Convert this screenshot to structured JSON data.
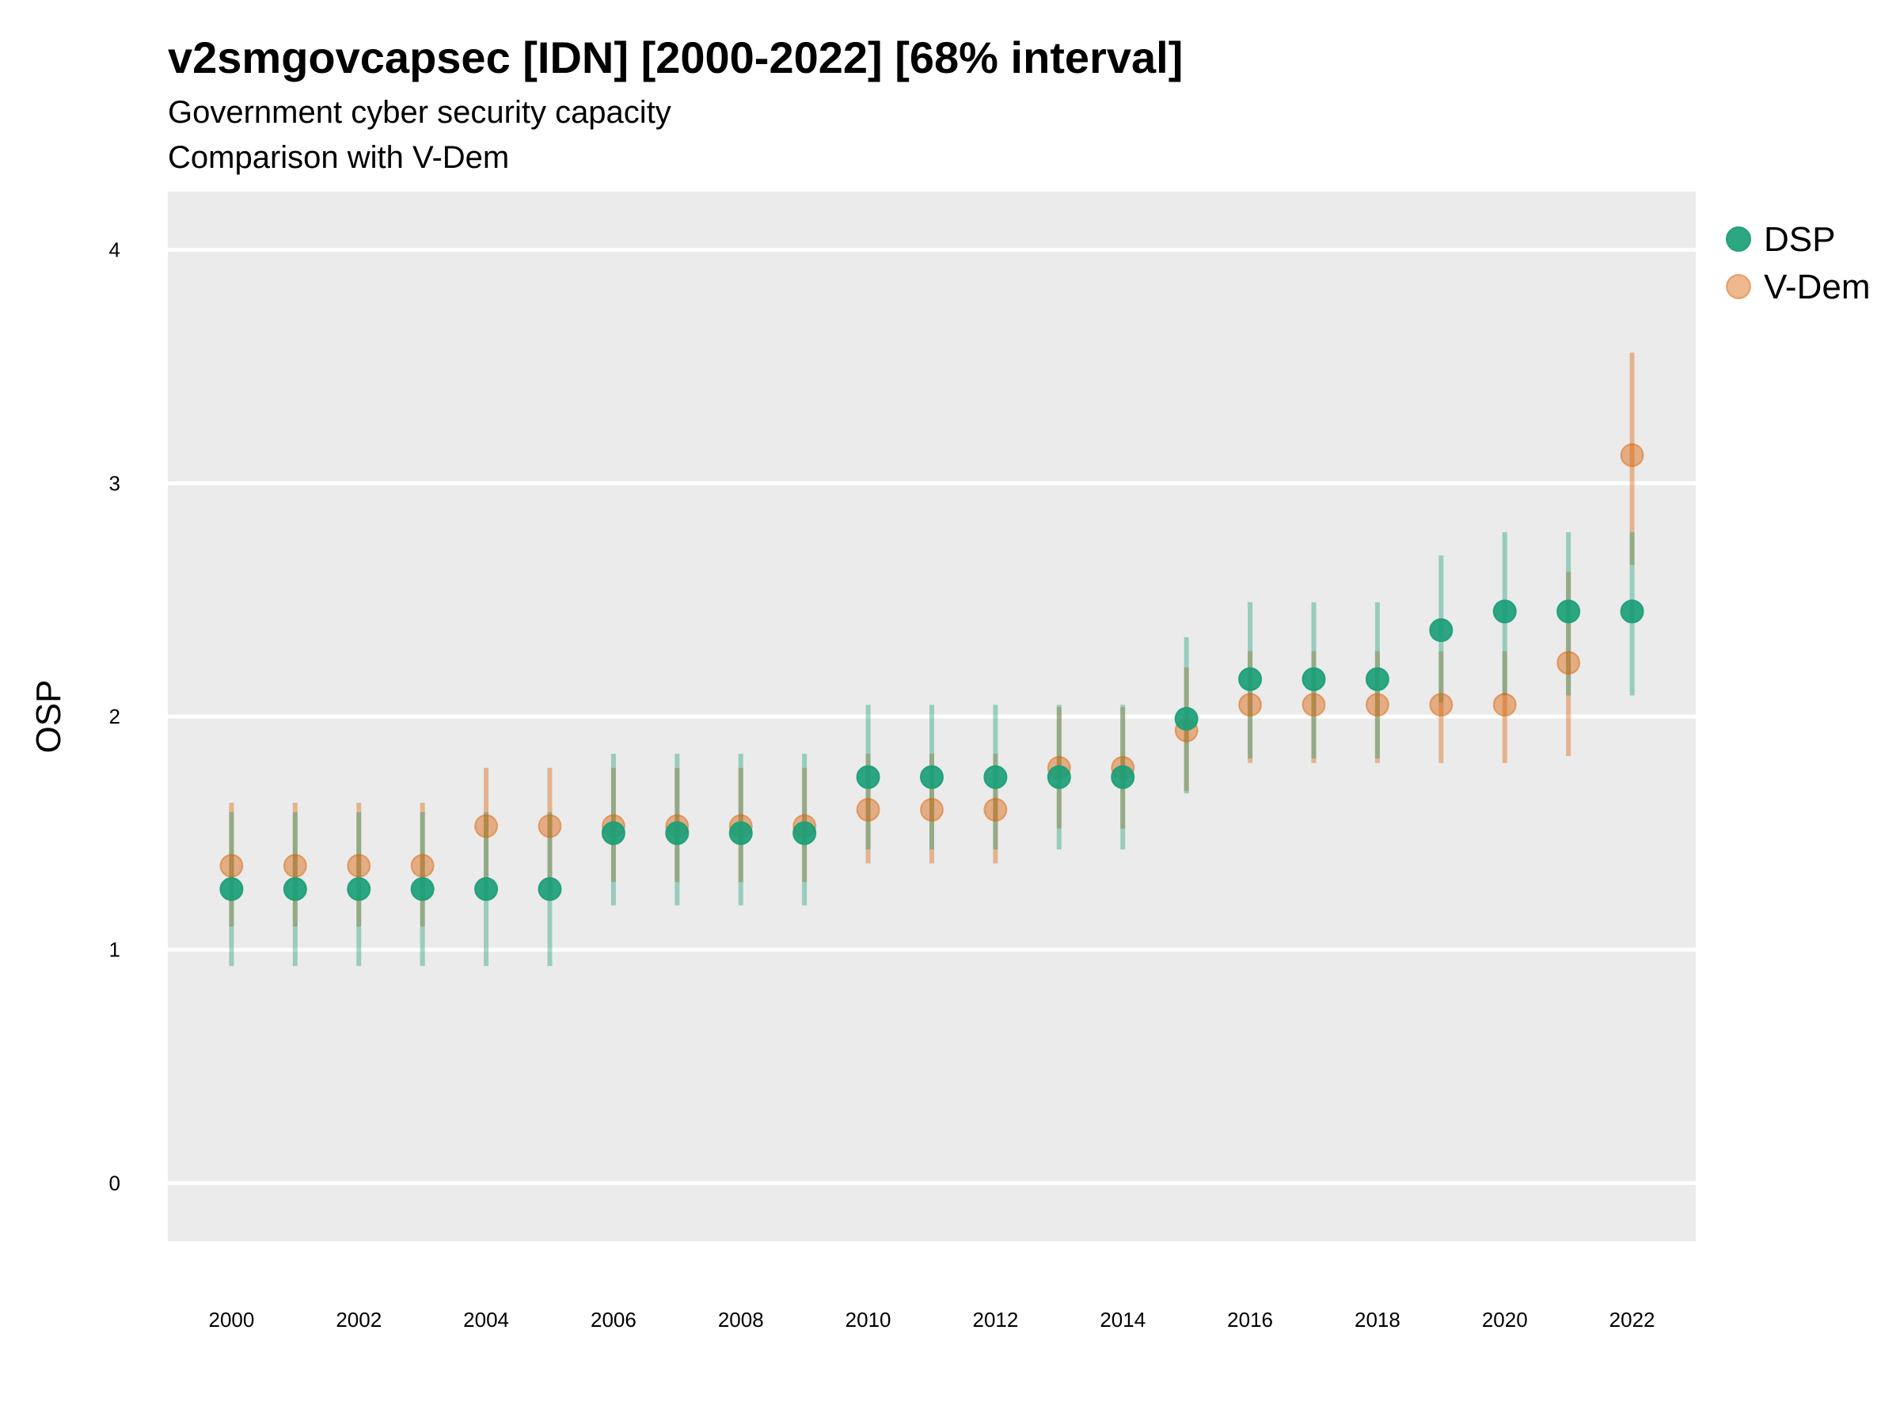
{
  "chart_data": {
    "type": "scatter",
    "title": "v2smgovcapsec [IDN] [2000-2022] [68% interval]",
    "subtitle": "Government cyber security capacity",
    "subtitle2": "Comparison with V-Dem",
    "ylabel": "OSP",
    "xlabel": "",
    "ylim": [
      -0.25,
      4.25
    ],
    "xlim": [
      1999,
      2023
    ],
    "yticks": [
      0,
      1,
      2,
      3,
      4
    ],
    "xticks": [
      2000,
      2002,
      2004,
      2006,
      2008,
      2010,
      2012,
      2014,
      2016,
      2018,
      2020,
      2022
    ],
    "grid": true,
    "legend_position": "right",
    "x": [
      2000,
      2001,
      2002,
      2003,
      2004,
      2005,
      2006,
      2007,
      2008,
      2009,
      2010,
      2011,
      2012,
      2013,
      2014,
      2015,
      2016,
      2017,
      2018,
      2019,
      2020,
      2021,
      2022
    ],
    "series": [
      {
        "name": "DSP",
        "color": "#1b9e77",
        "values": [
          1.26,
          1.26,
          1.26,
          1.26,
          1.26,
          1.26,
          1.5,
          1.5,
          1.5,
          1.5,
          1.74,
          1.74,
          1.74,
          1.74,
          1.74,
          1.99,
          2.16,
          2.16,
          2.16,
          2.37,
          2.45,
          2.45,
          2.45
        ],
        "lower": [
          0.93,
          0.93,
          0.93,
          0.93,
          0.93,
          0.93,
          1.19,
          1.19,
          1.19,
          1.19,
          1.43,
          1.43,
          1.43,
          1.43,
          1.43,
          1.67,
          1.82,
          1.82,
          1.82,
          2.06,
          2.09,
          2.09,
          2.09
        ],
        "upper": [
          1.59,
          1.59,
          1.59,
          1.59,
          1.59,
          1.59,
          1.84,
          1.84,
          1.84,
          1.84,
          2.05,
          2.05,
          2.05,
          2.05,
          2.05,
          2.34,
          2.49,
          2.49,
          2.49,
          2.69,
          2.79,
          2.79,
          2.79
        ]
      },
      {
        "name": "V-Dem",
        "color": "#d95f02",
        "values": [
          1.36,
          1.36,
          1.36,
          1.36,
          1.53,
          1.53,
          1.53,
          1.53,
          1.53,
          1.53,
          1.6,
          1.6,
          1.6,
          1.78,
          1.78,
          1.94,
          2.05,
          2.05,
          2.05,
          2.05,
          2.05,
          2.23,
          3.12
        ],
        "lower": [
          1.1,
          1.1,
          1.1,
          1.1,
          1.26,
          1.26,
          1.29,
          1.29,
          1.29,
          1.29,
          1.37,
          1.37,
          1.37,
          1.52,
          1.52,
          1.68,
          1.8,
          1.8,
          1.8,
          1.8,
          1.8,
          1.83,
          2.65
        ],
        "upper": [
          1.63,
          1.63,
          1.63,
          1.63,
          1.78,
          1.78,
          1.78,
          1.78,
          1.78,
          1.78,
          1.84,
          1.84,
          1.84,
          2.04,
          2.04,
          2.21,
          2.28,
          2.28,
          2.28,
          2.28,
          2.28,
          2.62,
          3.56
        ]
      }
    ]
  }
}
